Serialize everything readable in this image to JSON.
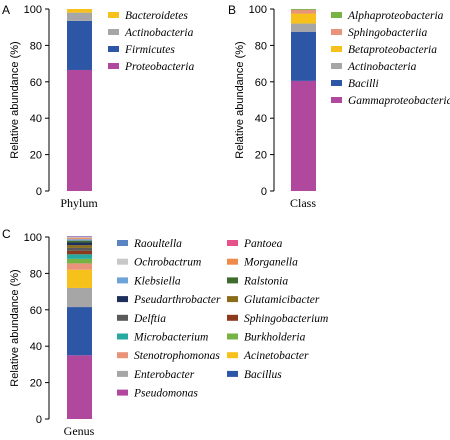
{
  "chart_data": [
    {
      "panel": "A",
      "type": "bar",
      "stacked": true,
      "categories": [
        "Phylum"
      ],
      "ylabel": "Relative abundance (%)",
      "ylim": [
        0,
        100
      ],
      "yticks": [
        0,
        20,
        40,
        60,
        80,
        100
      ],
      "legend_position": "right",
      "series": [
        {
          "name": "Proteobacteria",
          "values": [
            66.5
          ],
          "color": "#b0489e"
        },
        {
          "name": "Firmicutes",
          "values": [
            27
          ],
          "color": "#2d56a6"
        },
        {
          "name": "Actinobacteria",
          "values": [
            4.5
          ],
          "color": "#a6a6a6"
        },
        {
          "name": "Bacteroidetes",
          "values": [
            2
          ],
          "color": "#f6c11b"
        }
      ]
    },
    {
      "panel": "B",
      "type": "bar",
      "stacked": true,
      "categories": [
        "Class"
      ],
      "ylabel": "Relative abundance (%)",
      "ylim": [
        0,
        100
      ],
      "yticks": [
        0,
        20,
        40,
        60,
        80,
        100
      ],
      "legend_position": "right",
      "series": [
        {
          "name": "Gammaproteobacteria",
          "values": [
            60.5
          ],
          "color": "#b0489e"
        },
        {
          "name": "Bacilli",
          "values": [
            27
          ],
          "color": "#2d56a6"
        },
        {
          "name": "Actinobacteria",
          "values": [
            4.5
          ],
          "color": "#a6a6a6"
        },
        {
          "name": "Betaproteobacteria",
          "values": [
            5.5
          ],
          "color": "#f6c11b"
        },
        {
          "name": "Sphingobacteriia",
          "values": [
            2
          ],
          "color": "#e8937a"
        },
        {
          "name": "Alphaproteobacteria",
          "values": [
            0.5
          ],
          "color": "#76b244"
        }
      ]
    },
    {
      "panel": "C",
      "type": "bar",
      "stacked": true,
      "categories": [
        "Genus"
      ],
      "ylabel": "Relative abundance (%)",
      "ylim": [
        0,
        100
      ],
      "yticks": [
        0,
        20,
        40,
        60,
        80,
        100
      ],
      "legend_position": "right",
      "series": [
        {
          "name": "Pseudomonas",
          "values": [
            35
          ],
          "color": "#b0489e"
        },
        {
          "name": "Bacillus",
          "values": [
            26.5
          ],
          "color": "#2d56a6"
        },
        {
          "name": "Enterobacter",
          "values": [
            10.5
          ],
          "color": "#a6a6a6"
        },
        {
          "name": "Acinetobacter",
          "values": [
            10
          ],
          "color": "#f6c11b"
        },
        {
          "name": "Stenotrophomonas",
          "values": [
            3.5
          ],
          "color": "#e8937a"
        },
        {
          "name": "Burkholderia",
          "values": [
            2.5
          ],
          "color": "#76b244"
        },
        {
          "name": "Microbacterium",
          "values": [
            2.5
          ],
          "color": "#27a8a0"
        },
        {
          "name": "Sphingobacterium",
          "values": [
            2
          ],
          "color": "#8b3a1e"
        },
        {
          "name": "Delftia",
          "values": [
            1.5
          ],
          "color": "#5a5a5a"
        },
        {
          "name": "Glutamicibacter",
          "values": [
            1.5
          ],
          "color": "#8a6d1b"
        },
        {
          "name": "Pseudarthrobacter",
          "values": [
            1.5
          ],
          "color": "#1f2f5c"
        },
        {
          "name": "Ralstonia",
          "values": [
            1
          ],
          "color": "#3f6b2c"
        },
        {
          "name": "Klebsiella",
          "values": [
            0.8
          ],
          "color": "#6ea3d8"
        },
        {
          "name": "Morganella",
          "values": [
            0.6
          ],
          "color": "#f08a4b"
        },
        {
          "name": "Ochrobactrum",
          "values": [
            0.5
          ],
          "color": "#c8c8c8"
        },
        {
          "name": "Pantoea",
          "values": [
            0.3
          ],
          "color": "#e5528a"
        },
        {
          "name": "Raoultella",
          "values": [
            0.3
          ],
          "color": "#5b85c2"
        }
      ],
      "legend_order": [
        "Raoultella",
        "Pantoea",
        "Ochrobactrum",
        "Morganella",
        "Klebsiella",
        "Ralstonia",
        "Pseudarthrobacter",
        "Glutamicibacter",
        "Delftia",
        "Sphingobacterium",
        "Microbacterium",
        "Burkholderia",
        "Stenotrophomonas",
        "Acinetobacter",
        "Enterobacter",
        "Bacillus",
        "Pseudomonas"
      ]
    }
  ]
}
